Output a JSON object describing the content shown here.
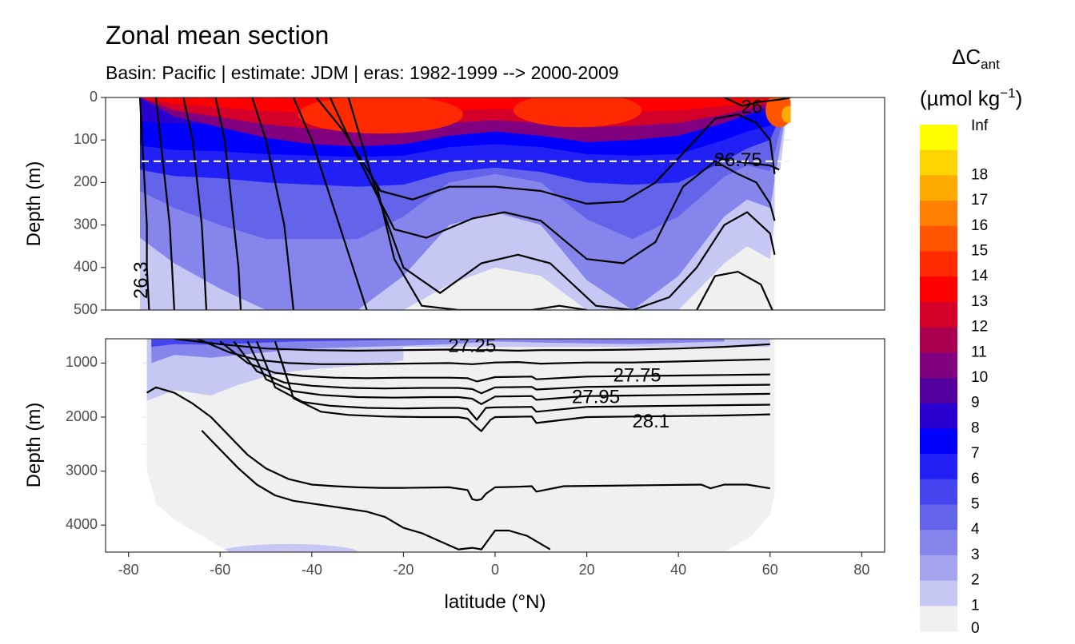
{
  "title": "Zonal mean section",
  "subtitle": "Basin: Pacific | estimate: JDM  | eras: 1982-1999 --> 2000-2009",
  "colors": {
    "background": "#ffffff",
    "panel_border": "#333333",
    "grid": "#ebebeb",
    "contour": "#000000",
    "dashed_line": "#ffffff",
    "no_data": "#ffffff"
  },
  "chart_data": {
    "type": "heatmap",
    "xlabel": "latitude (°N)",
    "ylabel": "Depth (m)",
    "xlim": [
      -85,
      85
    ],
    "x_ticks": [
      -80,
      -60,
      -40,
      -20,
      0,
      20,
      40,
      60,
      80
    ],
    "x_tick_labels": [
      "-80",
      "-60",
      "-40",
      "-20",
      "0",
      "20",
      "40",
      "60",
      "80"
    ],
    "data_lat_range": [
      -77.5,
      64.5
    ],
    "grid": true,
    "reference_depth_dashed": 150,
    "panels": [
      {
        "name": "upper",
        "depth_range": [
          0,
          500
        ],
        "y_ticks": [
          0,
          100,
          200,
          300,
          400,
          500
        ],
        "y_tick_labels": [
          "0",
          "100",
          "200",
          "300",
          "400",
          "500"
        ]
      },
      {
        "name": "lower",
        "depth_range": [
          550,
          4500
        ],
        "y_ticks": [
          1000,
          2000,
          3000,
          4000
        ],
        "y_tick_labels": [
          "1000",
          "2000",
          "3000",
          "4000"
        ]
      }
    ],
    "legend": {
      "title_main": "ΔC",
      "title_sub": "ant",
      "units_prefix": "(µmol kg",
      "units_sup": "−1",
      "units_suffix": ")",
      "position": "right",
      "labels": [
        "0",
        "1",
        "2",
        "3",
        "4",
        "5",
        "6",
        "7",
        "8",
        "9",
        "10",
        "11",
        "12",
        "13",
        "14",
        "15",
        "16",
        "17",
        "18",
        "Inf"
      ],
      "colors": [
        "#f0f0f0",
        "#c7c7f4",
        "#a4a4ef",
        "#8585eb",
        "#6464eb",
        "#4545ef",
        "#2121f6",
        "#0000ff",
        "#2a00d1",
        "#55009e",
        "#800080",
        "#aa0050",
        "#d4002a",
        "#ff0000",
        "#ff2a00",
        "#ff5500",
        "#ff8000",
        "#ffaa00",
        "#ffd400",
        "#ffff00"
      ]
    },
    "contour_labels": [
      {
        "text": "26",
        "lat": 56,
        "depth": 25
      },
      {
        "text": "26.75",
        "lat": 53,
        "depth": 150
      },
      {
        "text": "26.3",
        "lat": -77,
        "depth": 430
      },
      {
        "text": "27.25",
        "lat": -5,
        "depth": 700
      },
      {
        "text": "27.75",
        "lat": 31,
        "depth": 1250
      },
      {
        "text": "27.95",
        "lat": 22,
        "depth": 1650
      },
      {
        "text": "28.1",
        "lat": 34,
        "depth": 2100
      }
    ],
    "field_anchors_lat": [
      -77.5,
      -70,
      -60,
      -50,
      -40,
      -30,
      -20,
      -10,
      0,
      10,
      20,
      30,
      40,
      50,
      55,
      60,
      64
    ],
    "field_anchors_upper_bottom_of_band": {
      "band_gt_10": [
        0,
        45,
        70,
        95,
        110,
        115,
        110,
        90,
        80,
        90,
        105,
        100,
        90,
        60,
        40,
        20,
        0
      ],
      "band_gt_6": [
        170,
        185,
        190,
        200,
        205,
        210,
        205,
        175,
        165,
        175,
        200,
        205,
        200,
        150,
        120,
        100,
        0
      ],
      "band_gt_3": [
        330,
        390,
        450,
        500,
        500,
        500,
        420,
        300,
        270,
        300,
        430,
        500,
        420,
        280,
        240,
        260,
        0
      ],
      "band_gt_1": [
        500,
        500,
        500,
        500,
        500,
        500,
        500,
        440,
        400,
        420,
        500,
        500,
        500,
        390,
        350,
        380,
        0
      ]
    },
    "contours_upper": [
      {
        "lat": [
          -77.5,
          -77,
          -76.5,
          -76,
          -76,
          -75.5
        ],
        "depth": [
          0,
          100,
          200,
          300,
          400,
          500
        ]
      },
      {
        "lat": [
          -74,
          -73,
          -72,
          -71,
          -70.5,
          -70
        ],
        "depth": [
          0,
          100,
          200,
          300,
          400,
          500
        ]
      },
      {
        "lat": [
          -68,
          -66,
          -65,
          -64,
          -63.5,
          -63
        ],
        "depth": [
          0,
          100,
          200,
          300,
          400,
          500
        ]
      },
      {
        "lat": [
          -61,
          -59,
          -58,
          -57,
          -56,
          -55.5
        ],
        "depth": [
          0,
          100,
          200,
          300,
          400,
          500
        ]
      },
      {
        "lat": [
          -53,
          -50,
          -48,
          -46,
          -45,
          -44
        ],
        "depth": [
          0,
          100,
          200,
          300,
          400,
          500
        ]
      },
      {
        "lat": [
          -44,
          -40,
          -37,
          -34,
          -31,
          -28
        ],
        "depth": [
          0,
          100,
          200,
          300,
          400,
          500
        ]
      },
      {
        "lat": [
          -39,
          -33,
          -25,
          -18,
          -10,
          0,
          10,
          20,
          28,
          35,
          42,
          48,
          53,
          57,
          60,
          61
        ],
        "depth": [
          0,
          80,
          220,
          240,
          210,
          210,
          220,
          250,
          245,
          200,
          120,
          50,
          40,
          60,
          100,
          180
        ]
      },
      {
        "lat": [
          -36,
          -30,
          -22,
          -15,
          -5,
          2,
          10,
          20,
          28,
          35,
          41,
          48,
          53,
          57,
          60,
          61
        ],
        "depth": [
          0,
          140,
          310,
          330,
          285,
          270,
          290,
          380,
          390,
          340,
          210,
          150,
          180,
          200,
          250,
          290
        ]
      },
      {
        "lat": [
          -32,
          -26,
          -20,
          -12,
          -3,
          5,
          12,
          22,
          30,
          38,
          44,
          50,
          55,
          60,
          61
        ],
        "depth": [
          0,
          220,
          400,
          460,
          390,
          370,
          390,
          490,
          500,
          470,
          400,
          300,
          270,
          320,
          370
        ]
      },
      {
        "lat": [
          -26,
          -22,
          -16,
          -8,
          0,
          8,
          14,
          20
        ],
        "depth": [
          200,
          380,
          490,
          500,
          500,
          500,
          490,
          500
        ]
      },
      {
        "lat": [
          44,
          48,
          53,
          58,
          60.5
        ],
        "depth": [
          500,
          420,
          410,
          440,
          500
        ]
      },
      {
        "lat": [
          50,
          54,
          58,
          62,
          64.5
        ],
        "depth": [
          0,
          20,
          10,
          5,
          0
        ]
      },
      {
        "lat": [
          48,
          52,
          56,
          60,
          62
        ],
        "depth": [
          140,
          150,
          155,
          160,
          170
        ]
      }
    ],
    "contours_lower": [
      {
        "lat": [
          -70,
          -60,
          -50,
          -40,
          -30,
          -20,
          -10,
          -5,
          0,
          5,
          10,
          20,
          30,
          40,
          50,
          60
        ],
        "depth": [
          550,
          650,
          730,
          760,
          770,
          760,
          750,
          760,
          760,
          770,
          760,
          760,
          750,
          730,
          700,
          650
        ]
      },
      {
        "lat": [
          -65,
          -58,
          -52,
          -45,
          -38,
          -30,
          -20,
          -10,
          -5,
          0,
          5,
          10,
          20,
          30,
          40,
          50,
          60
        ],
        "depth": [
          550,
          800,
          940,
          1000,
          1020,
          1020,
          1010,
          1000,
          1020,
          990,
          980,
          1010,
          990,
          990,
          970,
          950,
          930
        ]
      },
      {
        "lat": [
          -60,
          -54,
          -48,
          -42,
          -35,
          -28,
          -20,
          -10,
          -6,
          -4,
          0,
          8,
          9,
          20,
          30,
          40,
          50,
          60
        ],
        "depth": [
          600,
          1000,
          1180,
          1240,
          1270,
          1280,
          1270,
          1270,
          1280,
          1340,
          1260,
          1250,
          1300,
          1250,
          1240,
          1230,
          1220,
          1210
        ]
      },
      {
        "lat": [
          -57,
          -52,
          -46,
          -40,
          -32,
          -24,
          -16,
          -8,
          -5,
          -3,
          0,
          8,
          9,
          20,
          30,
          40,
          50,
          60
        ],
        "depth": [
          600,
          1150,
          1360,
          1420,
          1460,
          1470,
          1460,
          1460,
          1480,
          1560,
          1450,
          1440,
          1490,
          1440,
          1430,
          1420,
          1410,
          1400
        ]
      },
      {
        "lat": [
          -54,
          -50,
          -44,
          -38,
          -30,
          -22,
          -14,
          -8,
          -5,
          -3,
          0,
          8,
          9,
          20,
          30,
          40,
          50,
          60
        ],
        "depth": [
          600,
          1300,
          1520,
          1590,
          1630,
          1640,
          1630,
          1630,
          1660,
          1760,
          1620,
          1610,
          1680,
          1610,
          1600,
          1590,
          1580,
          1570
        ]
      },
      {
        "lat": [
          -52,
          -48,
          -42,
          -36,
          -28,
          -20,
          -12,
          -8,
          -6,
          -4,
          -2,
          0,
          8,
          9,
          20,
          30,
          40,
          50,
          60
        ],
        "depth": [
          600,
          1450,
          1720,
          1790,
          1830,
          1840,
          1830,
          1830,
          1850,
          2050,
          1830,
          1820,
          1810,
          1900,
          1810,
          1800,
          1790,
          1780,
          1770
        ]
      },
      {
        "lat": [
          -48,
          -44,
          -38,
          -32,
          -24,
          -16,
          -8,
          -6,
          -4,
          -3,
          -1,
          0,
          8,
          9,
          20,
          30,
          40,
          50,
          60
        ],
        "depth": [
          600,
          1650,
          1900,
          1960,
          1990,
          2000,
          2000,
          2030,
          2190,
          2260,
          2050,
          2000,
          1990,
          2110,
          2000,
          1990,
          1980,
          1970,
          1950
        ]
      },
      {
        "lat": [
          -76,
          -74,
          -70,
          -66,
          -62,
          -58,
          -54,
          -50,
          -45,
          -40,
          -35,
          -30,
          -25,
          -20,
          -10,
          -6,
          -5,
          -4,
          -3,
          -2,
          0,
          5,
          8,
          9,
          15,
          25,
          35,
          45,
          47,
          50,
          55,
          60
        ],
        "depth": [
          1550,
          1450,
          1550,
          1750,
          2000,
          2350,
          2700,
          2950,
          3150,
          3250,
          3280,
          3300,
          3310,
          3310,
          3300,
          3350,
          3520,
          3540,
          3520,
          3420,
          3300,
          3290,
          3280,
          3380,
          3280,
          3270,
          3260,
          3250,
          3320,
          3250,
          3250,
          3320
        ]
      },
      {
        "lat": [
          -64,
          -60,
          -56,
          -52,
          -48,
          -44,
          -40,
          -36,
          -32,
          -28,
          -24,
          -20,
          -16,
          -12,
          -8,
          -5,
          -3,
          0,
          3,
          7,
          12
        ],
        "depth": [
          2250,
          2600,
          2950,
          3250,
          3450,
          3550,
          3600,
          3650,
          3700,
          3750,
          3850,
          4050,
          4150,
          4300,
          4450,
          4420,
          4450,
          4100,
          4100,
          4200,
          4450
        ]
      }
    ]
  }
}
